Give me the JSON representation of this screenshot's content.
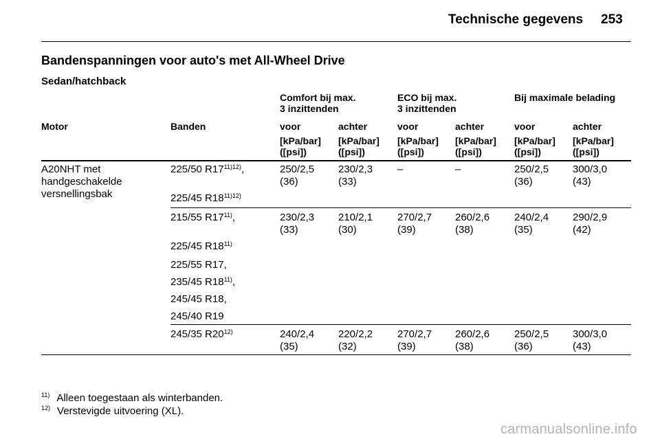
{
  "header": {
    "title": "Technische gegevens",
    "page_number": "253"
  },
  "section_title": "Bandenspanningen voor auto's met All-Wheel Drive",
  "subsection_title": "Sedan/hatchback",
  "table": {
    "group_headers": {
      "comfort": "Comfort bij max.\n3 inzittenden",
      "eco": "ECO bij max.\n3 inzittenden",
      "max_load": "Bij maximale belading"
    },
    "columns": [
      "Motor",
      "Banden",
      "voor",
      "achter",
      "voor",
      "achter",
      "voor",
      "achter"
    ],
    "unit": "[kPa/bar]\n([psi])",
    "motor": "A20NHT met\nhandgeschakelde\nversnellingsbak",
    "groups": [
      {
        "tires": [
          {
            "size": "225/50 R17",
            "note": "11)12)",
            "sep": ","
          },
          {
            "size": "225/45 R18",
            "note": "11)12)",
            "sep": ""
          }
        ],
        "values": [
          "250/2,5\n(36)",
          "230/2,3\n(33)",
          "–",
          "–",
          "250/2,5\n(36)",
          "300/3,0\n(43)"
        ]
      },
      {
        "tires": [
          {
            "size": "215/55 R17",
            "note": "11)",
            "sep": ","
          },
          {
            "size": "225/45 R18",
            "note": "11)",
            "sep": ""
          },
          {
            "size": "225/55 R17,",
            "note": "",
            "sep": ""
          },
          {
            "size": "235/45 R18",
            "note": "11)",
            "sep": ","
          },
          {
            "size": "245/45 R18,",
            "note": "",
            "sep": ""
          },
          {
            "size": "245/40 R19",
            "note": "",
            "sep": ""
          }
        ],
        "values": [
          "230/2,3\n(33)",
          "210/2,1\n(30)",
          "270/2,7\n(39)",
          "260/2,6\n(38)",
          "240/2,4\n(35)",
          "290/2,9\n(42)"
        ]
      },
      {
        "tires": [
          {
            "size": "245/35 R20",
            "note": "12)",
            "sep": ""
          }
        ],
        "values": [
          "240/2,4\n(35)",
          "220/2,2\n(32)",
          "270/2,7\n(39)",
          "260/2,6\n(38)",
          "250/2,5\n(36)",
          "300/3,0\n(43)"
        ]
      }
    ]
  },
  "footnotes": [
    {
      "mark": "11)",
      "text": "Alleen toegestaan als winterbanden."
    },
    {
      "mark": "12)",
      "text": "Verstevigde uitvoering (XL)."
    }
  ],
  "watermark": "carmanualsonline.info"
}
